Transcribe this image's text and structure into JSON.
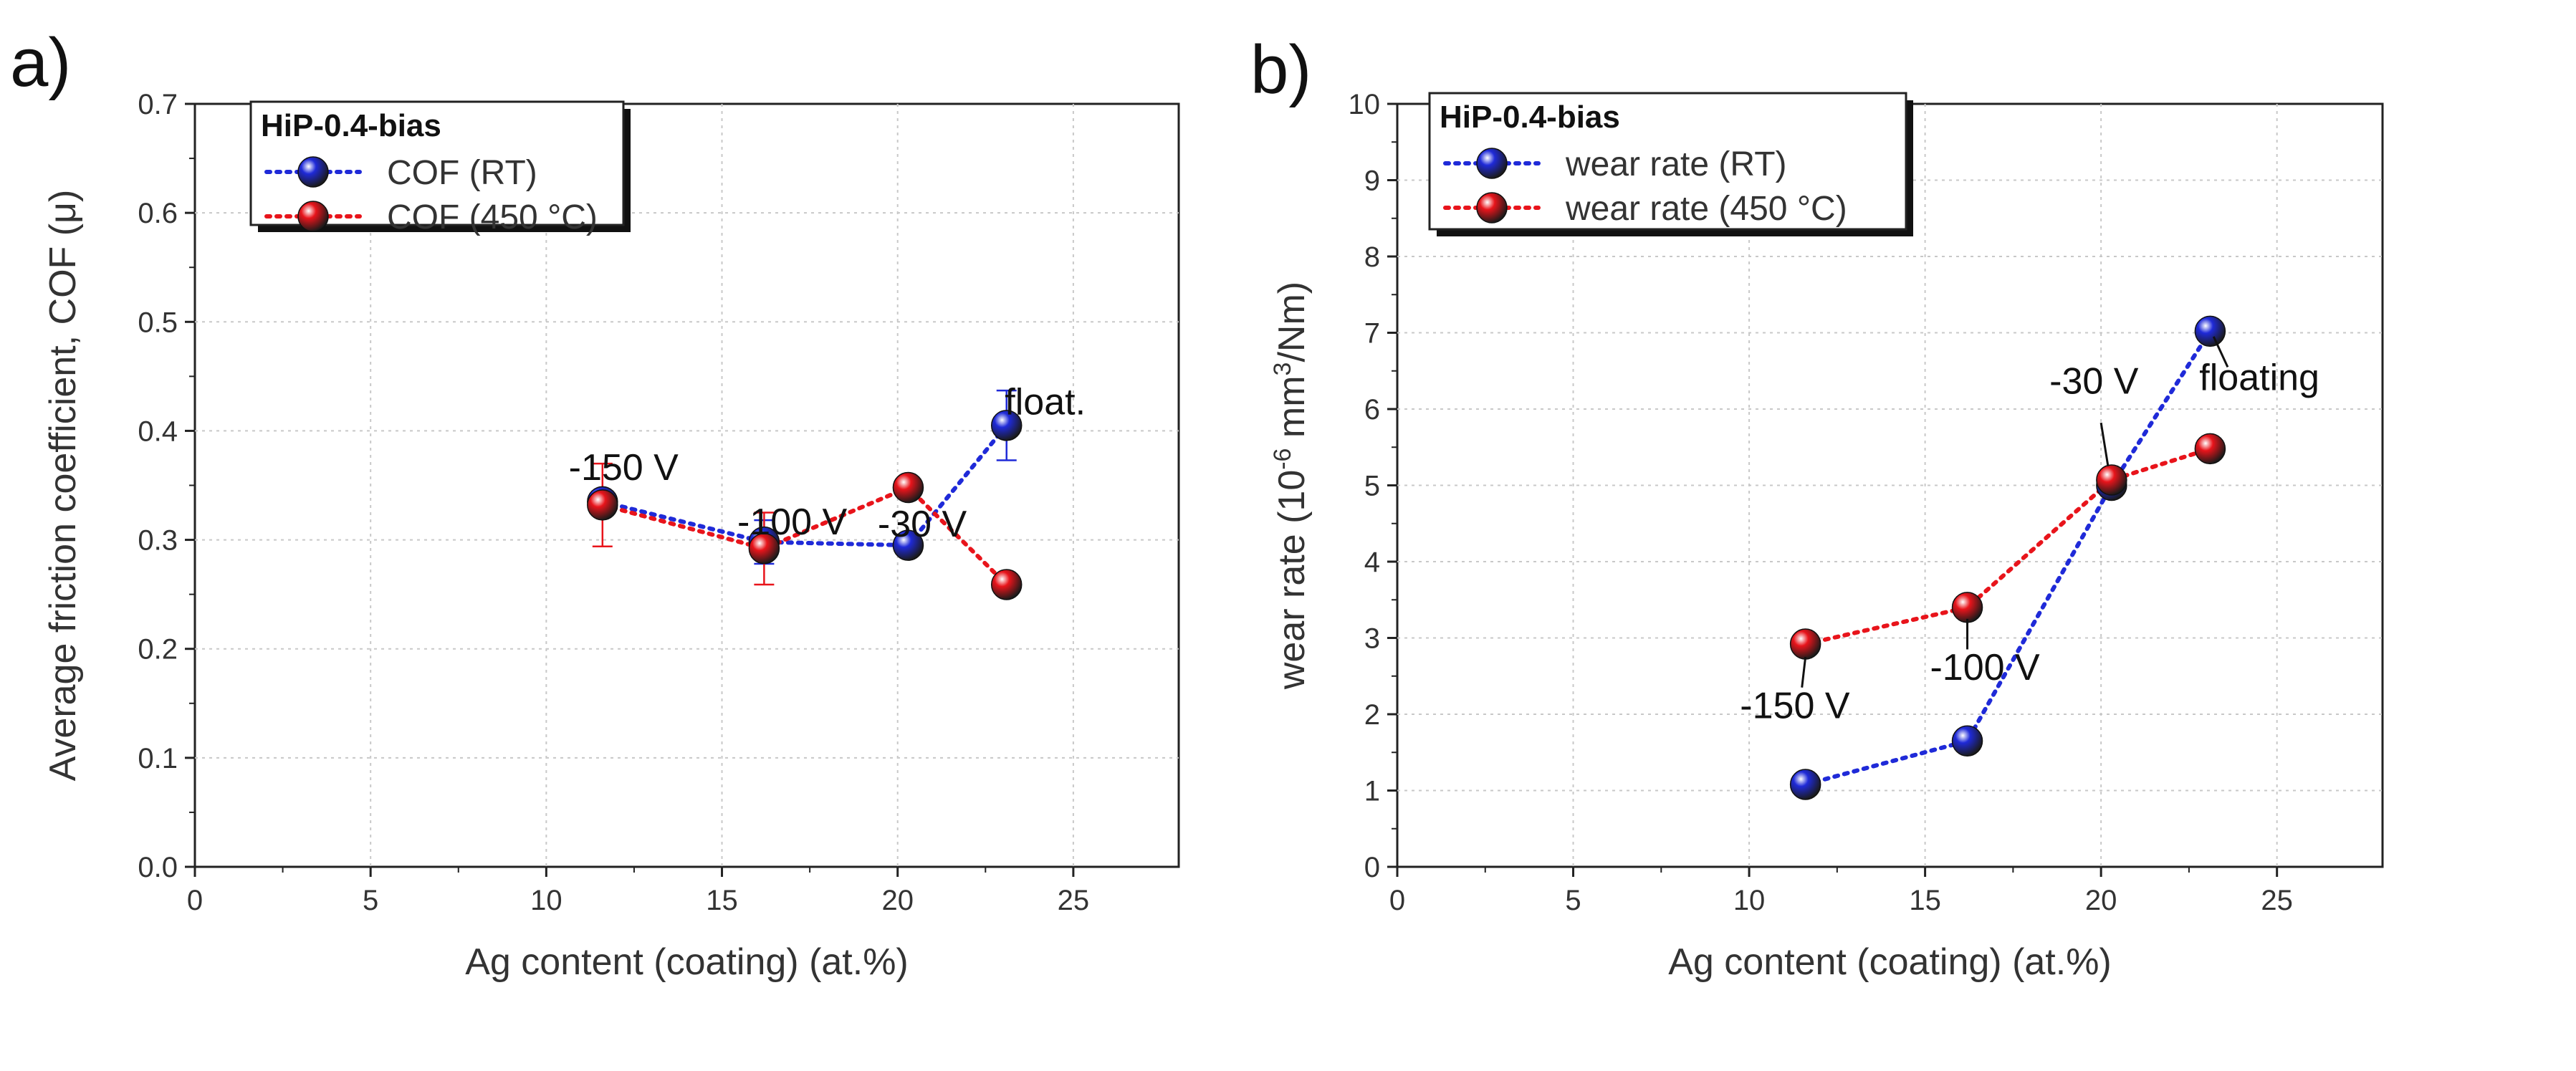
{
  "chart_data": [
    {
      "type": "scatter",
      "panel_label": "a)",
      "title": "",
      "xlabel": "Ag content (coating) (at.%)",
      "ylabel": "Average friction coefficient, COF (μ)",
      "xlim": [
        0,
        28
      ],
      "ylim": [
        0.0,
        0.7
      ],
      "xticks": [
        "0",
        "5",
        "10",
        "15",
        "20",
        "25"
      ],
      "yticks": [
        "0.0",
        "0.1",
        "0.2",
        "0.3",
        "0.4",
        "0.5",
        "0.6",
        "0.7"
      ],
      "grid": true,
      "legend": {
        "title": "HiP-0.4-bias",
        "location": "top-left",
        "entries": [
          "COF (RT)",
          "COF (450 °C)"
        ]
      },
      "series": [
        {
          "name": "COF (RT)",
          "color": "#1f2ad8",
          "x": [
            11.6,
            16.2,
            20.3,
            23.1
          ],
          "y": [
            0.335,
            0.298,
            0.295,
            0.405
          ],
          "err": [
            0.0,
            0.02,
            0.0,
            0.032
          ]
        },
        {
          "name": "COF (450 °C)",
          "color": "#e8141b",
          "x": [
            11.6,
            16.2,
            20.3,
            23.1
          ],
          "y": [
            0.332,
            0.292,
            0.348,
            0.259
          ],
          "err": [
            0.038,
            0.033,
            0.0,
            0.0
          ]
        }
      ],
      "annotations": [
        {
          "text": "-150 V",
          "x": 12.2,
          "y": 0.355,
          "leader": false
        },
        {
          "text": "-100 V",
          "x": 17.0,
          "y": 0.305,
          "leader": false
        },
        {
          "text": "-30 V",
          "x": 20.7,
          "y": 0.303,
          "leader": false
        },
        {
          "text": "float.",
          "x": 24.2,
          "y": 0.415,
          "leader": false
        }
      ]
    },
    {
      "type": "scatter",
      "panel_label": "b)",
      "title": "",
      "xlabel": "Ag content (coating) (at.%)",
      "ylabel_parts": [
        "wear rate (10",
        "-6",
        " mm",
        "3",
        "/Nm)"
      ],
      "xlim": [
        0,
        28
      ],
      "ylim": [
        0,
        10
      ],
      "xticks": [
        "0",
        "5",
        "10",
        "15",
        "20",
        "25"
      ],
      "yticks": [
        "0",
        "1",
        "2",
        "3",
        "4",
        "5",
        "6",
        "7",
        "8",
        "9",
        "10"
      ],
      "grid": true,
      "legend": {
        "title": "HiP-0.4-bias",
        "location": "top-left",
        "entries": [
          "wear rate (RT)",
          "wear rate (450 °C)"
        ]
      },
      "series": [
        {
          "name": "wear rate (RT)",
          "color": "#1f2ad8",
          "x": [
            11.6,
            16.2,
            20.3,
            23.1
          ],
          "y": [
            1.08,
            1.65,
            5.0,
            7.02
          ],
          "err": [
            0,
            0,
            0,
            0
          ]
        },
        {
          "name": "wear rate (450 °C)",
          "color": "#e8141b",
          "x": [
            11.6,
            16.2,
            20.3,
            23.1
          ],
          "y": [
            2.92,
            3.4,
            5.07,
            5.48
          ],
          "err": [
            0,
            0,
            0,
            0
          ]
        }
      ],
      "annotations": [
        {
          "text": "-150 V",
          "x": 11.3,
          "y": 1.95,
          "leader": true,
          "lx1": 11.5,
          "ly1": 2.35,
          "lx2": 11.6,
          "ly2": 2.75
        },
        {
          "text": "-100 V",
          "x": 16.7,
          "y": 2.45,
          "leader": true,
          "lx1": 16.2,
          "ly1": 2.85,
          "lx2": 16.2,
          "ly2": 3.25
        },
        {
          "text": "-30 V",
          "x": 19.8,
          "y": 6.2,
          "leader": true,
          "lx1": 20.0,
          "ly1": 5.82,
          "lx2": 20.2,
          "ly2": 5.25
        },
        {
          "text": "floating",
          "x": 24.5,
          "y": 6.25,
          "leader": true,
          "lx1": 23.6,
          "ly1": 6.55,
          "lx2": 23.2,
          "ly2": 6.95
        }
      ]
    }
  ]
}
